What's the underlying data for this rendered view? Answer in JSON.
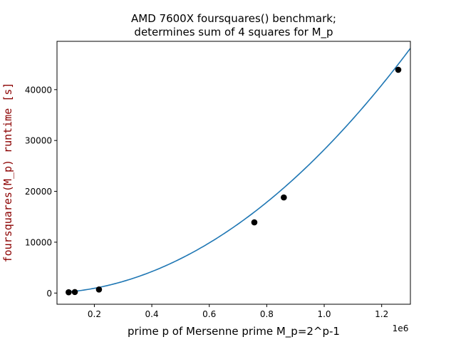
{
  "chart_data": {
    "type": "scatter",
    "title_line1": "AMD 7600X foursquares() benchmark;",
    "title_line2": "determines sum of 4 squares for M_p",
    "xlabel": "prime p of Mersenne prime M_p=2^p-1",
    "ylabel": "foursquares(M_p) runtime [s]",
    "x_offset_label": "1e6",
    "xlim": [
      0.07,
      1.3
    ],
    "ylim": [
      -2200,
      49500
    ],
    "x_ticks": [
      {
        "value": 0.2,
        "label": "0.2"
      },
      {
        "value": 0.4,
        "label": "0.4"
      },
      {
        "value": 0.6,
        "label": "0.6"
      },
      {
        "value": 0.8,
        "label": "0.8"
      },
      {
        "value": 1.0,
        "label": "1.0"
      },
      {
        "value": 1.2,
        "label": "1.2"
      }
    ],
    "y_ticks": [
      {
        "value": 0,
        "label": "0"
      },
      {
        "value": 10000,
        "label": "10000"
      },
      {
        "value": 20000,
        "label": "20000"
      },
      {
        "value": 30000,
        "label": "30000"
      },
      {
        "value": 40000,
        "label": "40000"
      }
    ],
    "points": [
      {
        "x": 0.110503,
        "y": 150
      },
      {
        "x": 0.132049,
        "y": 200
      },
      {
        "x": 0.216091,
        "y": 700
      },
      {
        "x": 0.756839,
        "y": 13900
      },
      {
        "x": 0.859433,
        "y": 18800
      },
      {
        "x": 1.257787,
        "y": 43900
      }
    ],
    "fit_curve": {
      "x_range": [
        0.11,
        1.3
      ],
      "coeffs_quadratic": [
        29400,
        -1200,
        0
      ]
    },
    "colors": {
      "point": "#000000",
      "curve": "#1f77b4",
      "ylabel": "#8b0000",
      "axis": "#000000"
    }
  }
}
